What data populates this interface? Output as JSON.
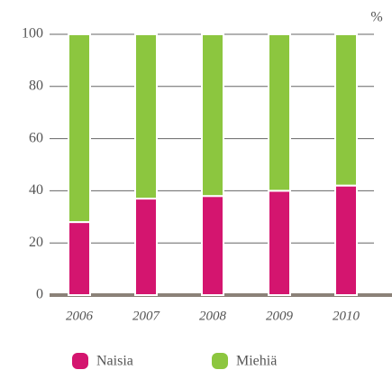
{
  "chart_data": {
    "type": "stacked_bar",
    "y_label": "%",
    "categories": [
      "2006",
      "2007",
      "2008",
      "2009",
      "2010"
    ],
    "series": [
      {
        "name": "Naisia",
        "color": "#d4156f",
        "values": [
          28,
          37,
          38,
          40,
          42
        ]
      },
      {
        "name": "Miehiä",
        "color": "#8cc63f",
        "values": [
          72,
          63,
          62,
          60,
          58
        ]
      }
    ],
    "ylim": [
      0,
      100
    ],
    "yticks": [
      0,
      20,
      40,
      60,
      80,
      100
    ],
    "grid": true
  }
}
